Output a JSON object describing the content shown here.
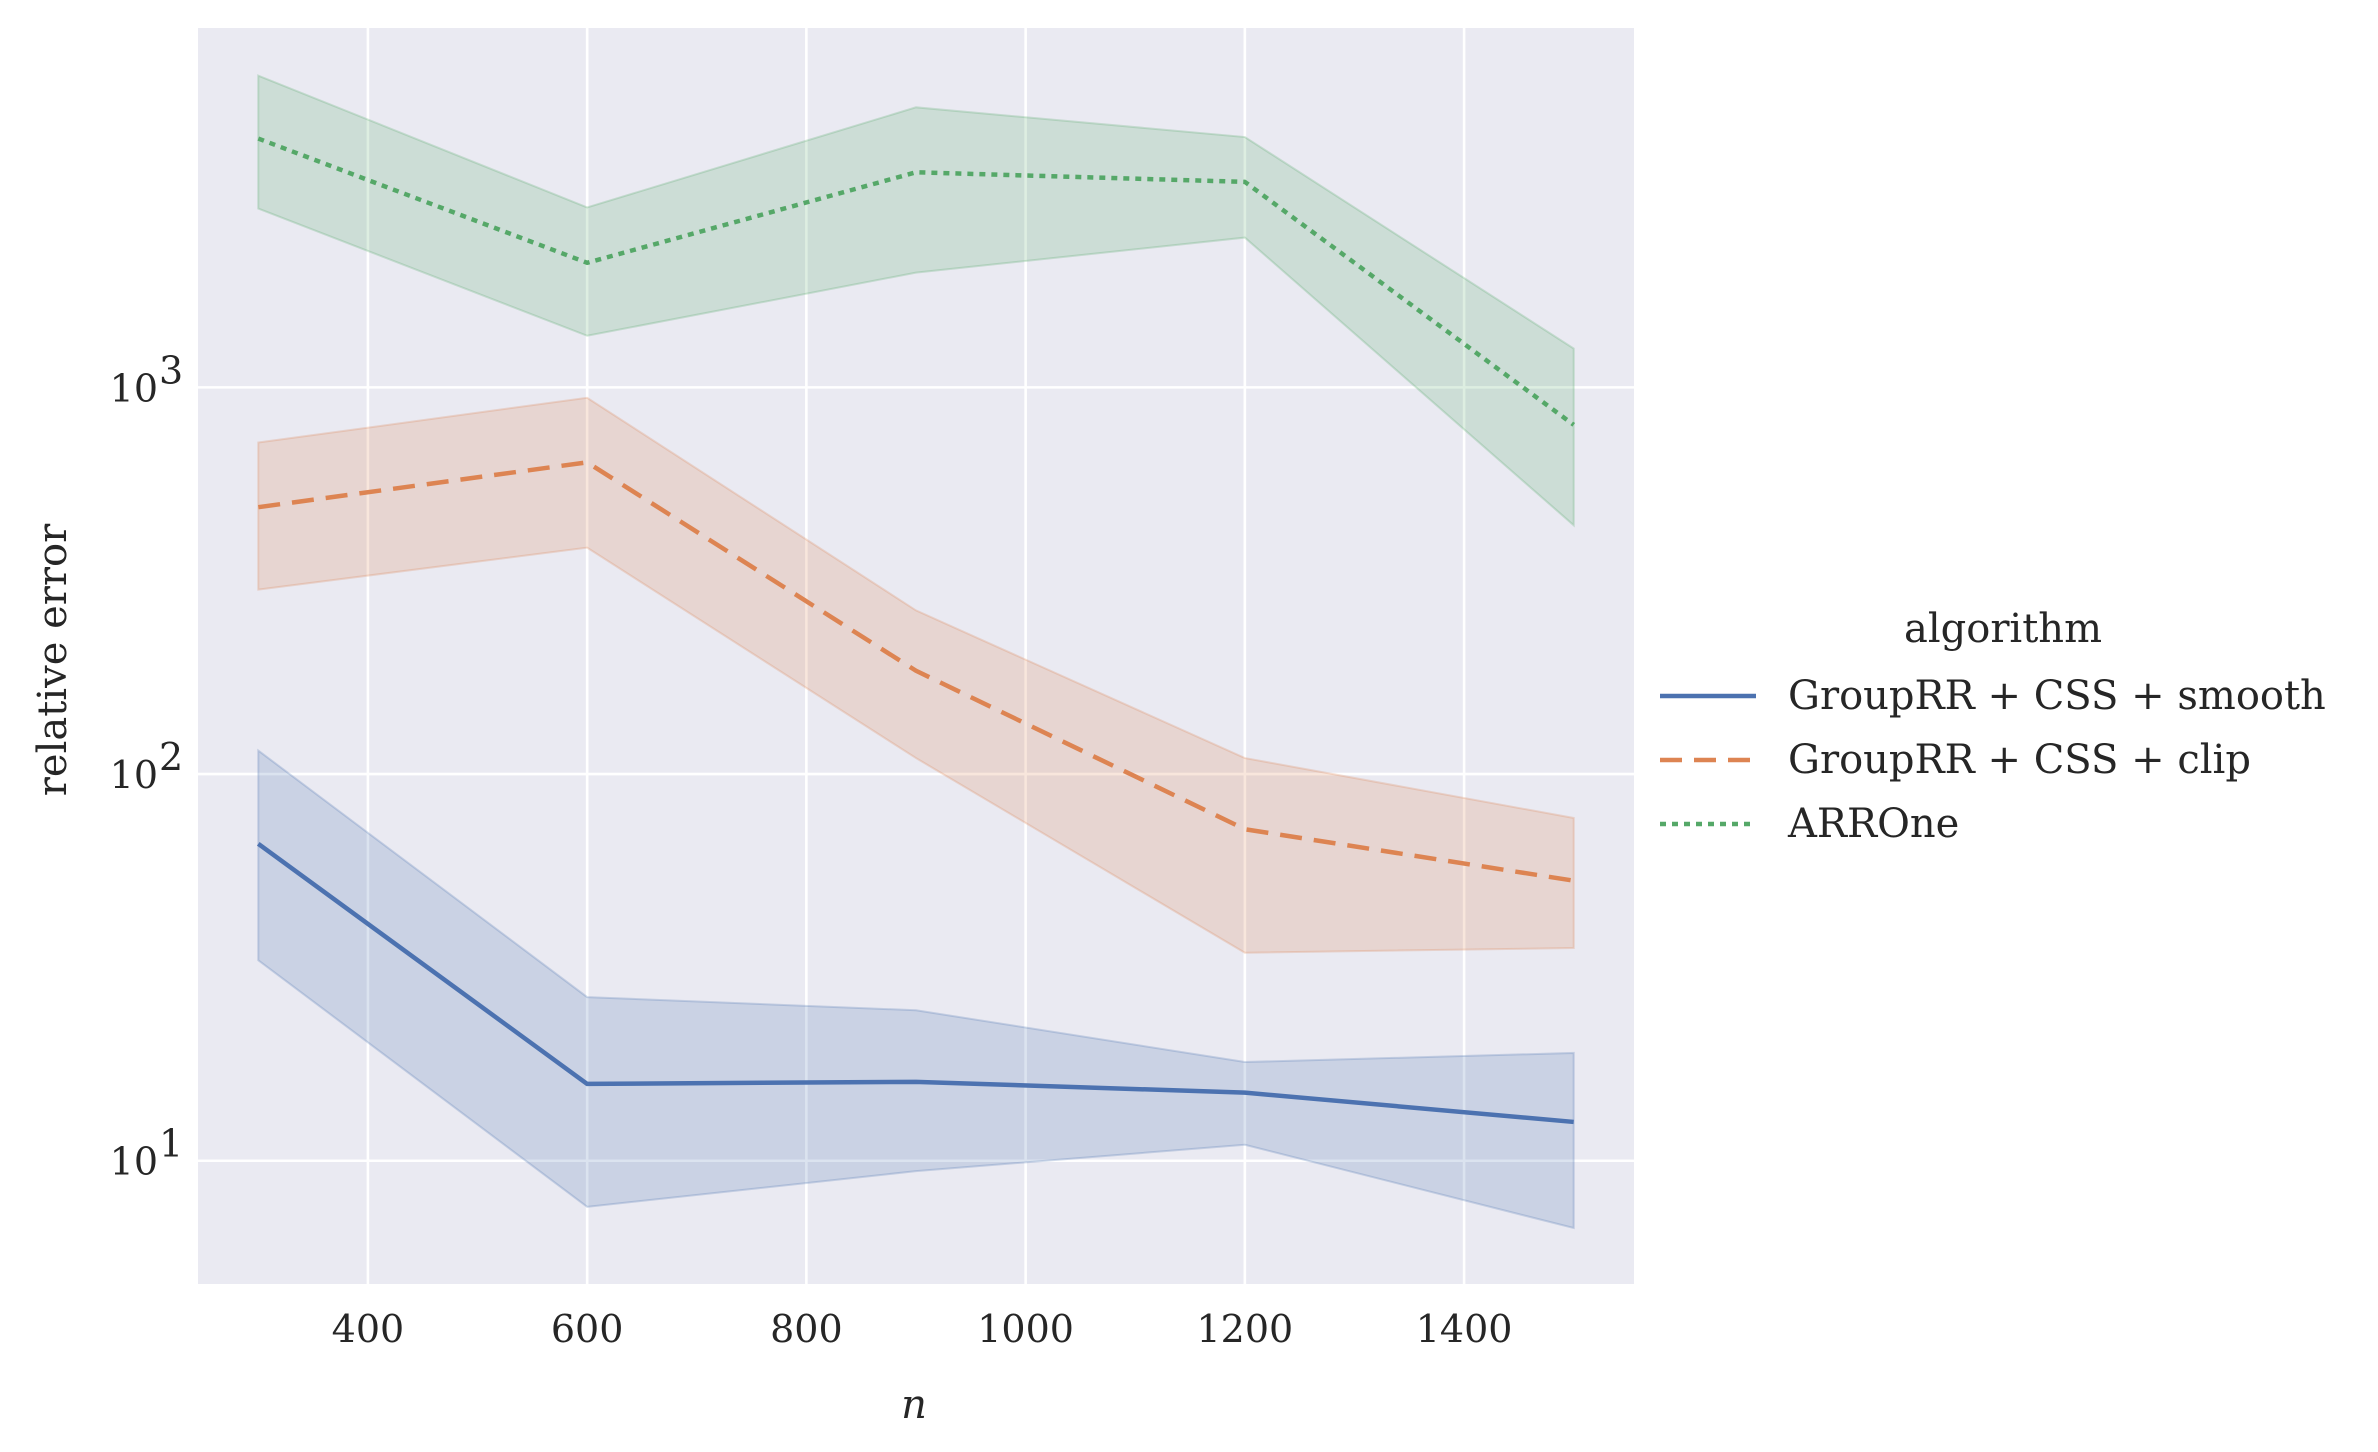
{
  "chart_data": {
    "type": "line",
    "title": "",
    "xlabel": "n",
    "ylabel": "relative error",
    "yscale": "log",
    "xlim": [
      245,
      1555
    ],
    "ylim": [
      4.8,
      8500
    ],
    "grid": true,
    "x_ticks": [
      400,
      600,
      800,
      1000,
      1200,
      1400
    ],
    "x_tick_labels": [
      "400",
      "600",
      "800",
      "1000",
      "1200",
      "1400"
    ],
    "y_ticks": [
      10,
      100,
      1000
    ],
    "y_tick_labels": [
      {
        "base": "10",
        "exp": "1"
      },
      {
        "base": "10",
        "exp": "2"
      },
      {
        "base": "10",
        "exp": "3"
      }
    ],
    "legend": {
      "title": "algorithm",
      "position": "outside-right"
    },
    "x": [
      300,
      600,
      900,
      1200,
      1500
    ],
    "series": [
      {
        "name": "GroupRR + CSS + smooth",
        "color": "#4c72b0",
        "dash": "solid",
        "values": [
          66,
          15.8,
          16,
          15,
          12.6
        ],
        "lower": [
          33,
          7.6,
          9.4,
          11,
          6.7
        ],
        "upper": [
          115,
          26.5,
          24.5,
          18,
          19
        ]
      },
      {
        "name": "GroupRR + CSS + clip",
        "color": "#dd8452",
        "dash": "dashed",
        "values": [
          490,
          640,
          185,
          72,
          53
        ],
        "lower": [
          300,
          385,
          110,
          34.5,
          35.5
        ],
        "upper": [
          720,
          940,
          265,
          110,
          77
        ]
      },
      {
        "name": "ARROne",
        "color": "#55a868",
        "dash": "dotted",
        "values": [
          4400,
          2100,
          3600,
          3400,
          800
        ],
        "lower": [
          2900,
          1360,
          1980,
          2440,
          440
        ],
        "upper": [
          6400,
          2920,
          5300,
          4440,
          1260
        ]
      }
    ]
  }
}
